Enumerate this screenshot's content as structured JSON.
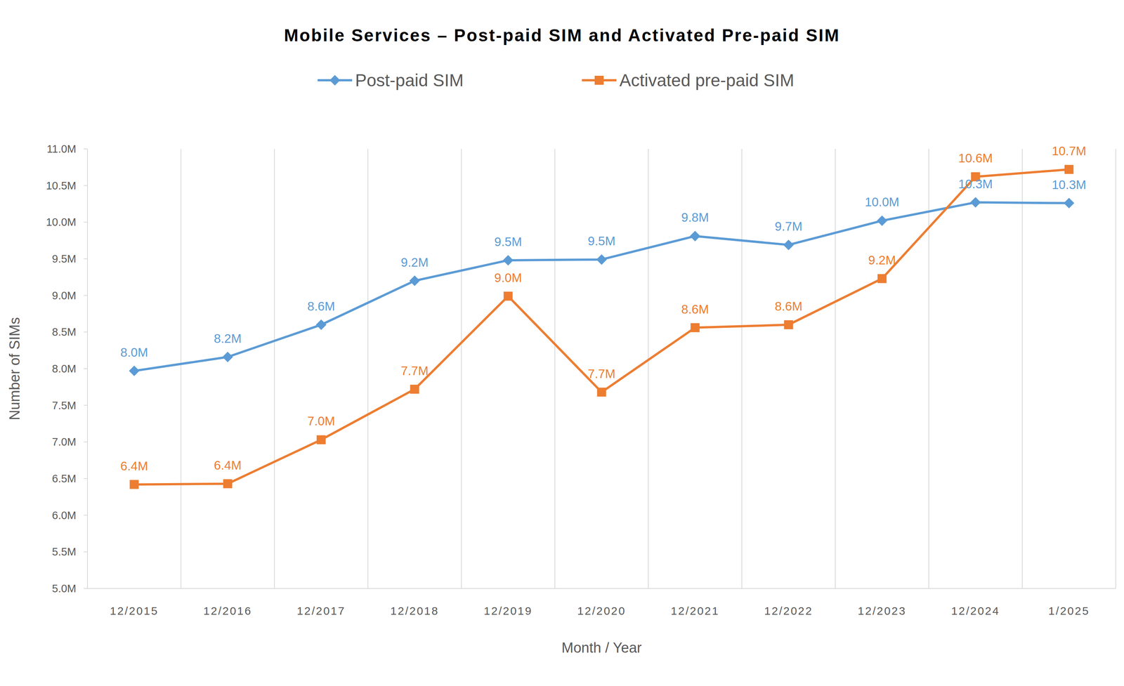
{
  "chart_data": {
    "type": "line",
    "title": "Mobile Services – Post-paid SIM and Activated Pre-paid SIM",
    "x_label": "Month / Year",
    "y_label": "Number of SIMs",
    "categories": [
      "12/2015",
      "12/2016",
      "12/2017",
      "12/2018",
      "12/2019",
      "12/2020",
      "12/2021",
      "12/2022",
      "12/2023",
      "12/2024",
      "1/2025"
    ],
    "series": [
      {
        "name": "Post-paid SIM",
        "color": "#5b9bd5",
        "marker": "diamond",
        "values": [
          7.97,
          8.16,
          8.6,
          9.2,
          9.48,
          9.49,
          9.81,
          9.69,
          10.02,
          10.27,
          10.26
        ],
        "value_labels": [
          "8.0M",
          "8.2M",
          "8.6M",
          "9.2M",
          "9.5M",
          "9.5M",
          "9.8M",
          "9.7M",
          "10.0M",
          "10.3M",
          "10.3M"
        ]
      },
      {
        "name": "Activated pre-paid SIM",
        "color": "#ed7d31",
        "marker": "square",
        "values": [
          6.42,
          6.43,
          7.03,
          7.72,
          8.99,
          7.68,
          8.56,
          8.6,
          9.23,
          10.62,
          10.72
        ],
        "value_labels": [
          "6.4M",
          "6.4M",
          "7.0M",
          "7.7M",
          "9.0M",
          "7.7M",
          "8.6M",
          "8.6M",
          "9.2M",
          "10.6M",
          "10.7M"
        ]
      }
    ],
    "ylim": [
      5,
      11
    ],
    "yticks": [
      {
        "value": 5,
        "label": "5.0M"
      },
      {
        "value": 5.5,
        "label": "5.5M"
      },
      {
        "value": 6,
        "label": "6.0M"
      },
      {
        "value": 6.5,
        "label": "6.5M"
      },
      {
        "value": 7,
        "label": "7.0M"
      },
      {
        "value": 7.5,
        "label": "7.5M"
      },
      {
        "value": 8,
        "label": "8.0M"
      },
      {
        "value": 8.5,
        "label": "8.5M"
      },
      {
        "value": 9,
        "label": "9.0M"
      },
      {
        "value": 9.5,
        "label": "9.5M"
      },
      {
        "value": 10,
        "label": "10.0M"
      },
      {
        "value": 10.5,
        "label": "10.5M"
      },
      {
        "value": 11,
        "label": "11.0M"
      }
    ],
    "grid": true,
    "legend": "top",
    "data_labels": true
  }
}
